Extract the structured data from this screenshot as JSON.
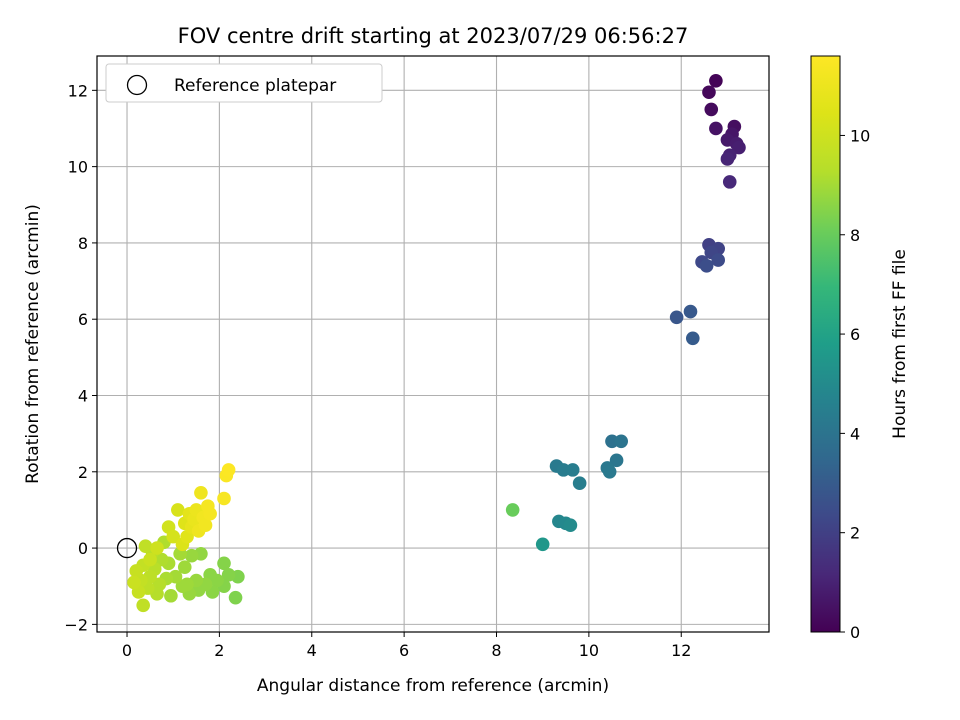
{
  "chart_data": {
    "type": "scatter",
    "title": "FOV centre drift starting at 2023/07/29 06:56:27",
    "xlabel": "Angular distance from reference (arcmin)",
    "ylabel": "Rotation from reference (arcmin)",
    "xlim": [
      -0.65,
      13.9
    ],
    "ylim": [
      -2.2,
      12.9
    ],
    "xticks": [
      0,
      2,
      4,
      6,
      8,
      10,
      12
    ],
    "yticks": [
      -2,
      0,
      2,
      4,
      6,
      8,
      10,
      12
    ],
    "grid": true,
    "legend": {
      "placement": "top-left",
      "entries": [
        "Reference platepar"
      ]
    },
    "reference_point": {
      "x": 0,
      "y": 0,
      "label": "Reference platepar"
    },
    "colorbar": {
      "label": "Hours from first FF file",
      "colormap": "viridis",
      "range": [
        0,
        11.6
      ],
      "ticks": [
        0,
        2,
        4,
        6,
        8,
        10
      ]
    },
    "series": [
      {
        "color_value": "Hours from first FF file",
        "points": [
          {
            "x": 12.75,
            "y": 12.25,
            "c": 0.1
          },
          {
            "x": 12.6,
            "y": 11.95,
            "c": 0.2
          },
          {
            "x": 12.65,
            "y": 11.5,
            "c": 0.3
          },
          {
            "x": 13.15,
            "y": 11.05,
            "c": 0.4
          },
          {
            "x": 12.75,
            "y": 11.0,
            "c": 0.5
          },
          {
            "x": 13.1,
            "y": 10.85,
            "c": 0.6
          },
          {
            "x": 13.0,
            "y": 10.7,
            "c": 0.7
          },
          {
            "x": 13.2,
            "y": 10.6,
            "c": 0.8
          },
          {
            "x": 13.25,
            "y": 10.5,
            "c": 0.9
          },
          {
            "x": 13.05,
            "y": 10.3,
            "c": 1.0
          },
          {
            "x": 13.0,
            "y": 10.2,
            "c": 1.1
          },
          {
            "x": 13.05,
            "y": 9.6,
            "c": 1.2
          },
          {
            "x": 12.6,
            "y": 7.95,
            "c": 2.0
          },
          {
            "x": 12.8,
            "y": 7.85,
            "c": 2.1
          },
          {
            "x": 12.65,
            "y": 7.75,
            "c": 2.2
          },
          {
            "x": 12.45,
            "y": 7.5,
            "c": 2.3
          },
          {
            "x": 12.8,
            "y": 7.55,
            "c": 2.4
          },
          {
            "x": 12.55,
            "y": 7.4,
            "c": 2.5
          },
          {
            "x": 11.9,
            "y": 6.05,
            "c": 2.8
          },
          {
            "x": 12.2,
            "y": 6.2,
            "c": 2.9
          },
          {
            "x": 12.25,
            "y": 5.5,
            "c": 3.0
          },
          {
            "x": 10.5,
            "y": 2.8,
            "c": 3.9
          },
          {
            "x": 10.7,
            "y": 2.8,
            "c": 4.0
          },
          {
            "x": 10.6,
            "y": 2.3,
            "c": 4.1
          },
          {
            "x": 10.4,
            "y": 2.1,
            "c": 4.2
          },
          {
            "x": 10.45,
            "y": 2.0,
            "c": 4.25
          },
          {
            "x": 9.3,
            "y": 2.15,
            "c": 4.3
          },
          {
            "x": 9.45,
            "y": 2.05,
            "c": 4.35
          },
          {
            "x": 9.65,
            "y": 2.05,
            "c": 4.4
          },
          {
            "x": 9.8,
            "y": 1.7,
            "c": 4.45
          },
          {
            "x": 9.35,
            "y": 0.7,
            "c": 4.8
          },
          {
            "x": 9.5,
            "y": 0.65,
            "c": 4.9
          },
          {
            "x": 9.6,
            "y": 0.6,
            "c": 5.0
          },
          {
            "x": 9.0,
            "y": 0.1,
            "c": 5.5
          },
          {
            "x": 8.35,
            "y": 1.0,
            "c": 8.0
          },
          {
            "x": 2.4,
            "y": -0.75,
            "c": 8.4
          },
          {
            "x": 2.35,
            "y": -1.3,
            "c": 8.4
          },
          {
            "x": 2.1,
            "y": -0.4,
            "c": 8.5
          },
          {
            "x": 2.2,
            "y": -0.7,
            "c": 8.5
          },
          {
            "x": 2.1,
            "y": -1.0,
            "c": 8.5
          },
          {
            "x": 1.95,
            "y": -0.85,
            "c": 8.6
          },
          {
            "x": 1.85,
            "y": -1.15,
            "c": 8.6
          },
          {
            "x": 1.8,
            "y": -0.7,
            "c": 8.6
          },
          {
            "x": 1.7,
            "y": -0.95,
            "c": 8.7
          },
          {
            "x": 1.6,
            "y": -0.15,
            "c": 8.7
          },
          {
            "x": 1.55,
            "y": -1.1,
            "c": 8.7
          },
          {
            "x": 1.5,
            "y": -0.85,
            "c": 8.8
          },
          {
            "x": 1.4,
            "y": -0.2,
            "c": 8.8
          },
          {
            "x": 1.35,
            "y": -1.2,
            "c": 8.8
          },
          {
            "x": 1.3,
            "y": -0.95,
            "c": 8.9
          },
          {
            "x": 1.25,
            "y": -0.5,
            "c": 8.9
          },
          {
            "x": 1.2,
            "y": -1.0,
            "c": 8.9
          },
          {
            "x": 1.15,
            "y": -0.15,
            "c": 9.0
          },
          {
            "x": 1.05,
            "y": -0.75,
            "c": 9.0
          },
          {
            "x": 0.95,
            "y": -1.25,
            "c": 9.0
          },
          {
            "x": 0.9,
            "y": -0.4,
            "c": 9.1
          },
          {
            "x": 0.85,
            "y": -0.8,
            "c": 9.1
          },
          {
            "x": 0.8,
            "y": 0.15,
            "c": 9.2
          },
          {
            "x": 0.75,
            "y": -0.3,
            "c": 9.2
          },
          {
            "x": 0.7,
            "y": -0.95,
            "c": 9.3
          },
          {
            "x": 0.65,
            "y": -1.2,
            "c": 9.3
          },
          {
            "x": 0.6,
            "y": -0.55,
            "c": 9.4
          },
          {
            "x": 0.55,
            "y": -0.1,
            "c": 9.4
          },
          {
            "x": 0.5,
            "y": -0.75,
            "c": 9.5
          },
          {
            "x": 0.45,
            "y": -1.05,
            "c": 9.5
          },
          {
            "x": 0.4,
            "y": 0.05,
            "c": 9.6
          },
          {
            "x": 0.35,
            "y": -1.5,
            "c": 9.6
          },
          {
            "x": 0.35,
            "y": -0.45,
            "c": 9.7
          },
          {
            "x": 0.3,
            "y": -0.85,
            "c": 9.7
          },
          {
            "x": 0.25,
            "y": -1.15,
            "c": 9.8
          },
          {
            "x": 0.2,
            "y": -0.6,
            "c": 9.8
          },
          {
            "x": 0.15,
            "y": -0.9,
            "c": 9.9
          },
          {
            "x": 0.5,
            "y": -0.3,
            "c": 9.9
          },
          {
            "x": 0.65,
            "y": 0.0,
            "c": 10.0
          },
          {
            "x": 0.9,
            "y": 0.55,
            "c": 10.1
          },
          {
            "x": 1.0,
            "y": 0.3,
            "c": 10.2
          },
          {
            "x": 1.1,
            "y": 1.0,
            "c": 10.3
          },
          {
            "x": 1.2,
            "y": 0.1,
            "c": 10.4
          },
          {
            "x": 1.25,
            "y": 0.65,
            "c": 10.5
          },
          {
            "x": 1.3,
            "y": 0.3,
            "c": 10.6
          },
          {
            "x": 1.35,
            "y": 0.9,
            "c": 10.7
          },
          {
            "x": 1.4,
            "y": 0.55,
            "c": 10.8
          },
          {
            "x": 1.45,
            "y": 0.75,
            "c": 10.9
          },
          {
            "x": 1.5,
            "y": 1.0,
            "c": 11.0
          },
          {
            "x": 1.55,
            "y": 0.45,
            "c": 11.1
          },
          {
            "x": 1.6,
            "y": 1.45,
            "c": 11.1
          },
          {
            "x": 1.65,
            "y": 0.8,
            "c": 11.2
          },
          {
            "x": 1.7,
            "y": 0.6,
            "c": 11.2
          },
          {
            "x": 1.75,
            "y": 1.1,
            "c": 11.3
          },
          {
            "x": 1.8,
            "y": 0.9,
            "c": 11.3
          },
          {
            "x": 2.1,
            "y": 1.3,
            "c": 11.4
          },
          {
            "x": 2.15,
            "y": 1.9,
            "c": 11.5
          },
          {
            "x": 2.2,
            "y": 2.05,
            "c": 11.55
          }
        ]
      }
    ]
  }
}
